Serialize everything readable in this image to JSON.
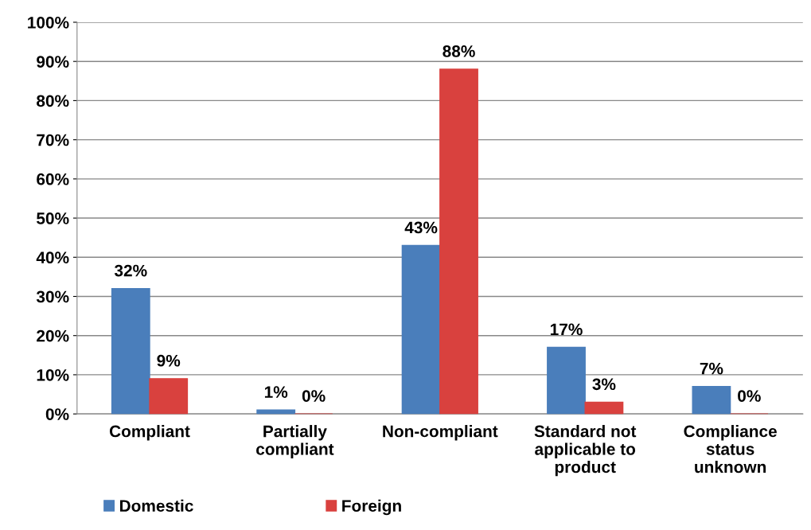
{
  "chart_data": {
    "type": "bar",
    "categories": [
      "Compliant",
      "Partially\ncompliant",
      "Non-compliant",
      "Standard not\napplicable to\nproduct",
      "Compliance\nstatus\nunknown"
    ],
    "series": [
      {
        "name": "Domestic",
        "color": "#4a7ebb",
        "values": [
          32,
          1,
          43,
          17,
          7
        ],
        "value_labels": [
          "32%",
          "1%",
          "43%",
          "17%",
          "7%"
        ]
      },
      {
        "name": "Foreign",
        "color": "#d9413e",
        "values": [
          9,
          0,
          88,
          3,
          0
        ],
        "value_labels": [
          "9%",
          "0%",
          "88%",
          "3%",
          "0%"
        ]
      }
    ],
    "ylim": [
      0,
      100
    ],
    "yticks": [
      {
        "value": 0,
        "label": "0%"
      },
      {
        "value": 10,
        "label": "10%"
      },
      {
        "value": 20,
        "label": "20%"
      },
      {
        "value": 30,
        "label": "30%"
      },
      {
        "value": 40,
        "label": "40%"
      },
      {
        "value": 50,
        "label": "50%"
      },
      {
        "value": 60,
        "label": "60%"
      },
      {
        "value": 70,
        "label": "70%"
      },
      {
        "value": 80,
        "label": "80%"
      },
      {
        "value": 90,
        "label": "90%"
      },
      {
        "value": 100,
        "label": "100%"
      }
    ],
    "grid": "y",
    "legend": "bottom left"
  }
}
